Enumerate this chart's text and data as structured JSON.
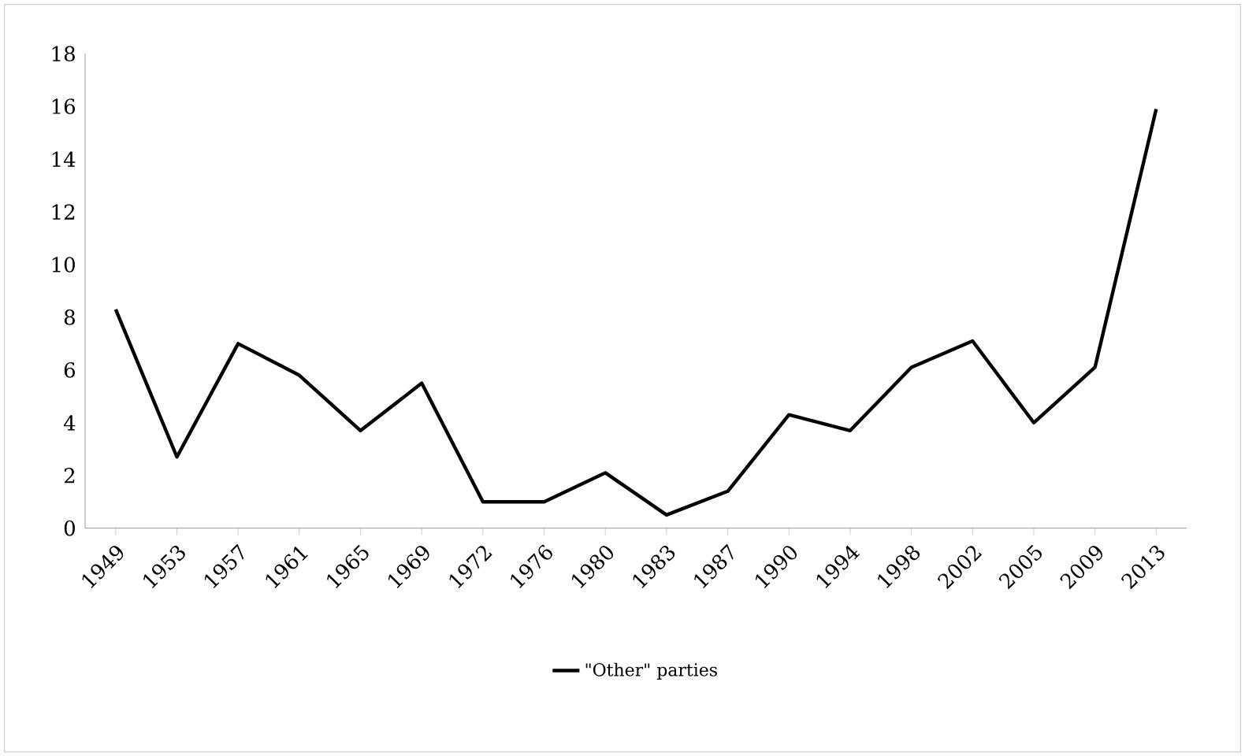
{
  "chart_data": {
    "type": "line",
    "categories": [
      "1949",
      "1953",
      "1957",
      "1961",
      "1965",
      "1969",
      "1972",
      "1976",
      "1980",
      "1983",
      "1987",
      "1990",
      "1994",
      "1998",
      "2002",
      "2005",
      "2009",
      "2013"
    ],
    "series": [
      {
        "name": "\"Other\" parties",
        "color": "#000000",
        "values": [
          8.3,
          2.7,
          7.0,
          5.8,
          3.7,
          5.5,
          1.0,
          1.0,
          2.1,
          0.5,
          1.4,
          4.3,
          3.7,
          6.1,
          7.1,
          4.0,
          6.1,
          15.9
        ]
      }
    ],
    "ylim": [
      0,
      18
    ],
    "yticks": [
      0,
      2,
      4,
      6,
      8,
      10,
      12,
      14,
      16,
      18
    ],
    "grid": false,
    "legend": "bottom",
    "marker": "none",
    "line_style": "solid"
  }
}
